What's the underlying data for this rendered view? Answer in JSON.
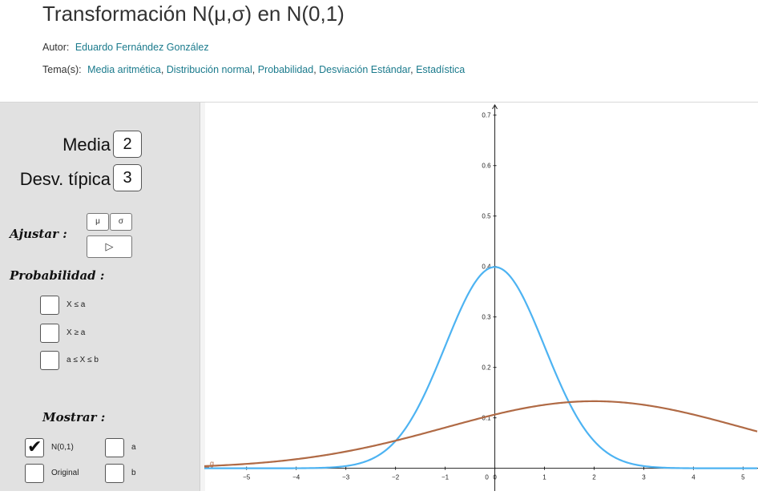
{
  "header": {
    "title": "Transformación N(μ,σ) en N(0,1)",
    "author_label": "Autor:",
    "author_name": "Eduardo Fernández González",
    "topics_label": "Tema(s):",
    "topics": [
      "Media aritmética",
      "Distribución normal",
      "Probabilidad",
      "Desviación Estándar",
      "Estadística"
    ]
  },
  "panel": {
    "mean_label": "Media",
    "mean_value": "2",
    "sd_label": "Desv. típica",
    "sd_value": "3",
    "adjust_label": "Ajustar :",
    "mu_button": "μ",
    "sigma_button": "σ",
    "play_button": "▷",
    "probability_label": "Probabilidad :",
    "prob_options": [
      {
        "label": "X ≤ a",
        "checked": false
      },
      {
        "label": "X ≥ a",
        "checked": false
      },
      {
        "label": "a ≤ X ≤ b",
        "checked": false
      }
    ],
    "show_label": "Mostrar :",
    "show_options": [
      {
        "label": "N(0,1)",
        "checked": true
      },
      {
        "label": "Original",
        "checked": false
      },
      {
        "label": "a",
        "checked": false
      },
      {
        "label": "b",
        "checked": false
      }
    ]
  },
  "chart_data": {
    "type": "line",
    "x_ticks": [
      -5,
      -4,
      -3,
      -2,
      -1,
      0,
      1,
      2,
      3,
      4,
      5
    ],
    "y_ticks": [
      0.1,
      0.2,
      0.3,
      0.4,
      0.5,
      0.6,
      0.7
    ],
    "xlim": [
      -5.85,
      5.3
    ],
    "ylim": [
      -0.045,
      0.725
    ],
    "series": [
      {
        "name": "N(0,1)",
        "mu": 0,
        "sigma": 1,
        "color": "#4db3f2"
      },
      {
        "name": "N(2,3)",
        "mu": 2,
        "sigma": 3,
        "color": "#b06a45"
      }
    ],
    "origin_label": "0",
    "left_marker_label": "g"
  }
}
